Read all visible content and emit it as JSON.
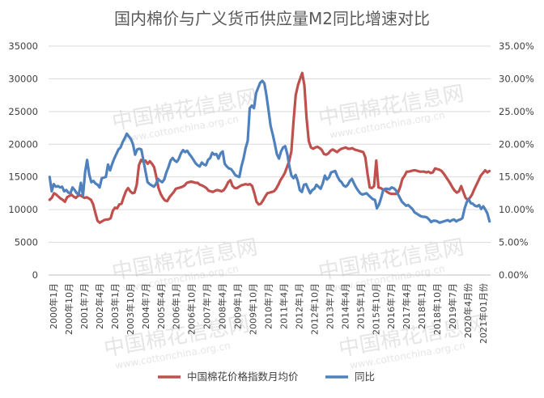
{
  "chart_data": {
    "type": "line",
    "title": "国内棉价与广义货币供应量M2同比增速对比",
    "watermark": [
      "中国棉花信息网",
      "www.cottonchina.org.cn"
    ],
    "x_tick_labels": [
      "2000年1月",
      "2000年10月",
      "2001年7月",
      "2002年4月",
      "2003年1月",
      "2003年10月",
      "2004年7月",
      "2005年4月",
      "2006年1月",
      "2006年10月",
      "2007年7月",
      "2008年4月",
      "2009年1月",
      "2009年10月",
      "2010年7月",
      "2011年4月",
      "2012年1月",
      "2012年10月",
      "2013年7月",
      "2014年4月",
      "2015年1月",
      "2015年10月",
      "2016年7月",
      "2017年4月",
      "2018年1月",
      "2018年10月",
      "2019年7月",
      "2020年4月份",
      "2021年01月份"
    ],
    "y_left": {
      "ticks": [
        "0",
        "5000",
        "10000",
        "15000",
        "20000",
        "25000",
        "30000",
        "35000"
      ],
      "ylim": [
        0,
        35000
      ]
    },
    "y_right": {
      "ticks": [
        "0.00%",
        "5.00%",
        "10.00%",
        "15.00%",
        "20.00%",
        "25.00%",
        "30.00%",
        "35.00%"
      ],
      "ylim": [
        0,
        35
      ]
    },
    "grid": true,
    "legend_position": "bottom",
    "series": [
      {
        "name": "中国棉花价格指数月均价",
        "axis": "left",
        "color": "#c0504d",
        "values": [
          11500,
          11800,
          12500,
          12300,
          12000,
          11700,
          11500,
          11200,
          11900,
          12100,
          12300,
          12000,
          11800,
          12100,
          12200,
          12000,
          11800,
          11900,
          11700,
          11500,
          10800,
          9500,
          8300,
          8000,
          8200,
          8400,
          8500,
          8500,
          8700,
          9800,
          10300,
          10200,
          10800,
          10900,
          11900,
          12800,
          13300,
          12800,
          12500,
          12600,
          13800,
          16800,
          17600,
          17300,
          17500,
          17000,
          17400,
          17000,
          16500,
          15000,
          13300,
          12400,
          11800,
          11400,
          11300,
          11900,
          12300,
          12700,
          13200,
          13300,
          13400,
          13500,
          13700,
          14100,
          14200,
          14300,
          14200,
          14100,
          14100,
          13800,
          13700,
          13500,
          13300,
          12900,
          12800,
          12700,
          12900,
          13000,
          12900,
          12800,
          13000,
          13500,
          14200,
          14500,
          13600,
          13300,
          13300,
          13500,
          13700,
          13800,
          13900,
          13800,
          13900,
          13600,
          12500,
          11200,
          10800,
          10900,
          11400,
          12000,
          12500,
          12600,
          12700,
          12800,
          13200,
          13800,
          14500,
          15000,
          15600,
          16500,
          17400,
          18900,
          23500,
          27500,
          29000,
          30000,
          30900,
          29000,
          24000,
          20500,
          19500,
          19300,
          19500,
          19600,
          19400,
          19100,
          18500,
          18400,
          18600,
          19000,
          19200,
          19000,
          18800,
          19100,
          19300,
          19400,
          19500,
          19300,
          19300,
          19400,
          19200,
          19100,
          19000,
          18900,
          18800,
          18000,
          15500,
          13400,
          13300,
          13600,
          17500,
          13400,
          13300,
          13100,
          13000,
          12700,
          12500,
          12400,
          12400,
          12400,
          12600,
          13500,
          14700,
          15200,
          15800,
          15800,
          15900,
          16000,
          16000,
          15900,
          15800,
          15800,
          15800,
          15700,
          15800,
          15600,
          15700,
          16300,
          16200,
          16100,
          15900,
          15500,
          15000,
          14500,
          14000,
          13400,
          12900,
          12600,
          12800,
          13600,
          12700,
          11800,
          11500,
          11800,
          12300,
          13100,
          13800,
          14500,
          15200,
          15600,
          16000,
          15700,
          15900
        ]
      },
      {
        "name": "同比",
        "axis": "right",
        "color": "#4f81bd",
        "values": [
          15.0,
          12.8,
          13.9,
          13.5,
          13.6,
          13.4,
          13.5,
          12.8,
          13.0,
          12.6,
          12.5,
          13.4,
          13.0,
          12.5,
          12.3,
          14.1,
          12.1,
          15.7,
          17.6,
          15.4,
          14.2,
          14.4,
          14.0,
          13.8,
          13.4,
          14.8,
          14.9,
          15.0,
          16.9,
          16.0,
          17.0,
          17.8,
          18.5,
          19.2,
          19.5,
          20.3,
          20.9,
          21.6,
          21.2,
          20.8,
          20.0,
          18.4,
          19.2,
          19.3,
          19.2,
          17.5,
          15.8,
          14.2,
          13.9,
          13.7,
          13.5,
          13.9,
          14.7,
          14.4,
          14.2,
          14.6,
          15.7,
          16.5,
          17.5,
          17.9,
          17.5,
          17.3,
          17.8,
          18.6,
          19.1,
          18.8,
          19.0,
          18.5,
          18.1,
          17.6,
          17.1,
          16.8,
          16.6,
          17.2,
          16.9,
          16.8,
          17.6,
          17.9,
          18.7,
          18.4,
          18.5,
          17.8,
          18.6,
          18.9,
          17.0,
          16.6,
          16.3,
          16.2,
          15.8,
          15.3,
          15.1,
          15.0,
          16.6,
          17.8,
          19.4,
          20.5,
          25.5,
          25.9,
          25.5,
          27.8,
          28.6,
          29.4,
          29.7,
          29.3,
          27.5,
          25.2,
          22.8,
          21.5,
          20.1,
          18.5,
          17.8,
          18.9,
          19.5,
          19.7,
          18.5,
          16.6,
          15.2,
          14.8,
          15.3,
          14.4,
          13.0,
          12.7,
          13.8,
          13.9,
          13.2,
          12.5,
          13.0,
          13.2,
          13.8,
          13.5,
          13.2,
          14.0,
          15.2,
          14.6,
          14.9,
          15.7,
          15.8,
          15.9,
          15.1,
          14.5,
          14.2,
          13.7,
          13.5,
          13.8,
          14.4,
          14.7,
          14.0,
          13.4,
          12.9,
          12.5,
          12.3,
          12.4,
          12.5,
          12.2,
          11.9,
          11.6,
          11.5,
          10.2,
          10.8,
          11.8,
          13.0,
          13.2,
          13.2,
          13.1,
          13.4,
          13.3,
          13.0,
          12.4,
          11.8,
          11.2,
          10.9,
          10.6,
          10.7,
          10.4,
          10.1,
          9.6,
          9.4,
          9.2,
          9.0,
          8.9,
          8.9,
          8.8,
          8.5,
          8.1,
          8.3,
          8.3,
          8.2,
          8.0,
          8.1,
          8.2,
          8.3,
          8.4,
          8.2,
          8.4,
          8.5,
          8.2,
          8.4,
          8.5,
          8.7,
          10.1,
          11.1,
          11.6,
          11.0,
          10.9,
          10.6,
          10.5,
          10.7,
          10.1,
          10.5,
          10.0,
          9.4,
          8.2
        ]
      }
    ]
  }
}
